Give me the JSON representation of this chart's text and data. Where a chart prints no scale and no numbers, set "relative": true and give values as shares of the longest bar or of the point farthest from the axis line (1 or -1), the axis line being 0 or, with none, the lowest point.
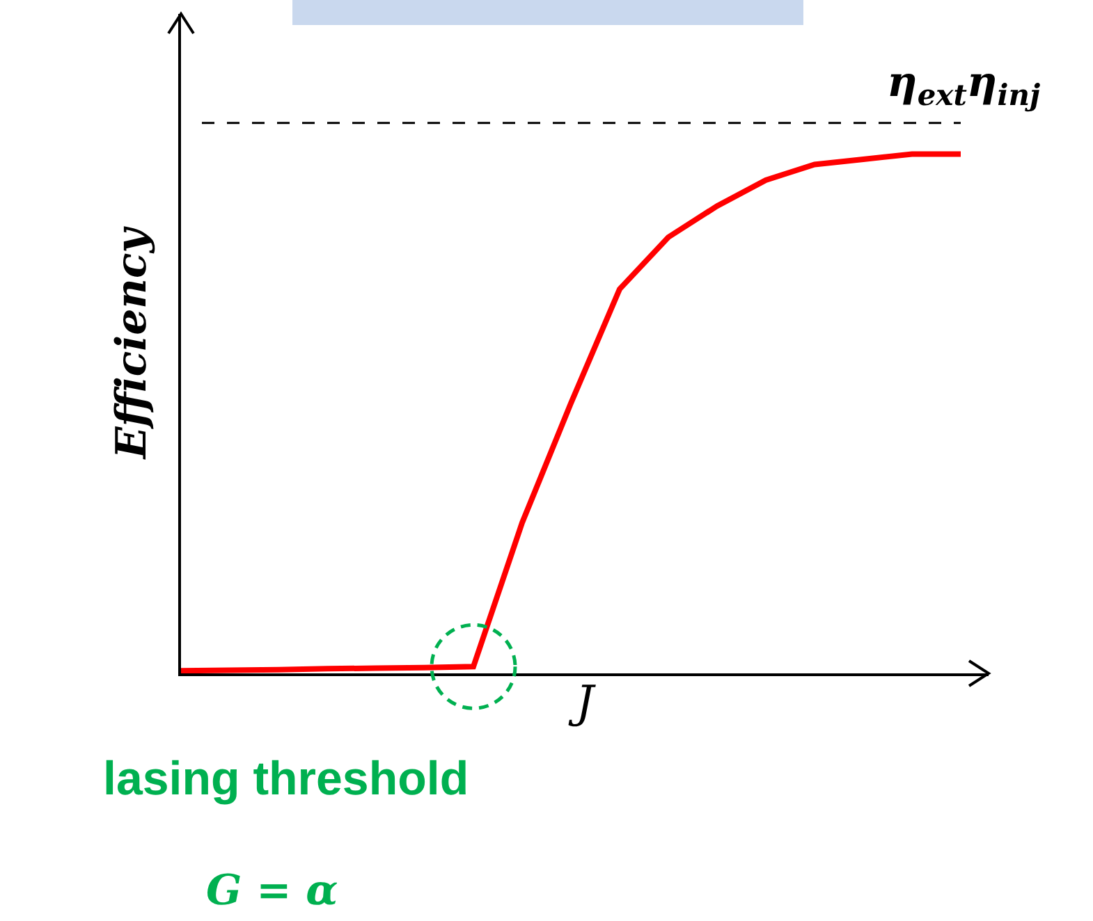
{
  "chart_data": {
    "type": "line",
    "relative": true,
    "xlabel": "J",
    "ylabel": "Efficiency",
    "categories": [
      null,
      null,
      null,
      null,
      null,
      null,
      null,
      null,
      null,
      null,
      null,
      null,
      null,
      null,
      null,
      null,
      null
    ],
    "series": [
      {
        "color": "#ff0000",
        "values": [
          0.005,
          0.006,
          0.007,
          0.009,
          0.01,
          0.011,
          0.013,
          0.29,
          0.52,
          0.74,
          0.84,
          0.9,
          0.95,
          0.98,
          0.99,
          1.0,
          1.0
        ]
      }
    ],
    "ref_lines": [
      {
        "axis": "y",
        "value": 1.06,
        "label": "η$_{ext}$η$_{inj}$",
        "color": "#000000",
        "line_style": "dashed"
      }
    ],
    "annotations": [
      "lasing threshold",
      "G = α"
    ],
    "marker": "none",
    "line_style": "solid",
    "tick_labels": false
  }
}
